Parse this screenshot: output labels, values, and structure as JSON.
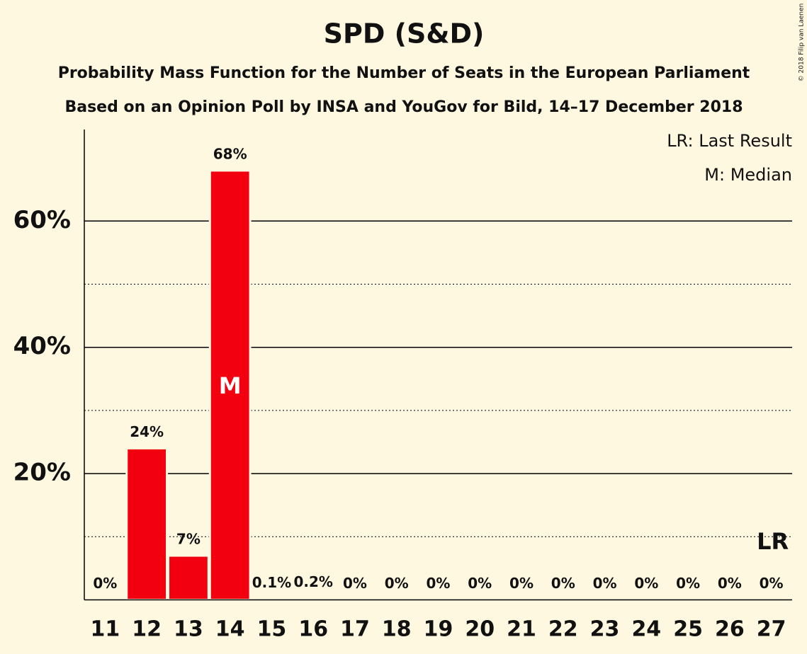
{
  "chart_data": {
    "type": "bar",
    "title": "SPD (S&D)",
    "subtitle": [
      "Probability Mass Function for the Number of Seats in the European Parliament",
      "Based on an Opinion Poll by INSA and YouGov for Bild, 14–17 December 2018"
    ],
    "categories": [
      "11",
      "12",
      "13",
      "14",
      "15",
      "16",
      "17",
      "18",
      "19",
      "20",
      "21",
      "22",
      "23",
      "24",
      "25",
      "26",
      "27"
    ],
    "values": [
      0,
      24,
      7,
      68,
      0.1,
      0.2,
      0,
      0,
      0,
      0,
      0,
      0,
      0,
      0,
      0,
      0,
      0
    ],
    "value_labels": [
      "0%",
      "24%",
      "7%",
      "68%",
      "0.1%",
      "0.2%",
      "0%",
      "0%",
      "0%",
      "0%",
      "0%",
      "0%",
      "0%",
      "0%",
      "0%",
      "0%",
      "0%"
    ],
    "color": "#f20010",
    "ylim": [
      0,
      75
    ],
    "yticks": [
      {
        "value": 20,
        "label": "20%"
      },
      {
        "value": 40,
        "label": "40%"
      },
      {
        "value": 60,
        "label": "60%"
      }
    ],
    "minor_yticks": [
      10,
      30,
      50
    ],
    "grid": true,
    "markers": [
      {
        "label": "M",
        "category": "14"
      },
      {
        "label": "LR",
        "category": "27"
      }
    ],
    "annotations": [
      "LR: Last Result",
      "M: Median"
    ],
    "copyright": "© 2018 Filip van Laenen"
  }
}
